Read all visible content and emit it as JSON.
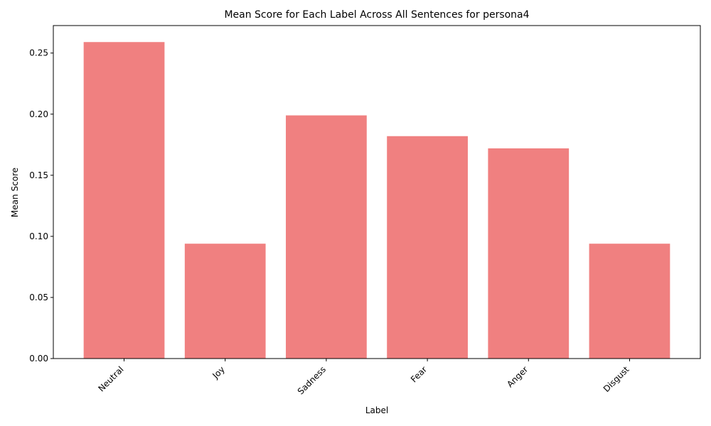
{
  "chart_data": {
    "type": "bar",
    "title": "Mean Score for Each Label Across All Sentences for persona4",
    "xlabel": "Label",
    "ylabel": "Mean Score",
    "categories": [
      "Neutral",
      "Joy",
      "Sadness",
      "Fear",
      "Anger",
      "Disgust"
    ],
    "values": [
      0.259,
      0.094,
      0.199,
      0.182,
      0.172,
      0.094
    ],
    "ylim": [
      0,
      0.2725
    ],
    "yticks": [
      0.0,
      0.05,
      0.1,
      0.15,
      0.2,
      0.25
    ],
    "ytick_labels": [
      "0.00",
      "0.05",
      "0.10",
      "0.15",
      "0.20",
      "0.25"
    ],
    "bar_color": "#f08080",
    "grid": false,
    "legend": "none"
  }
}
